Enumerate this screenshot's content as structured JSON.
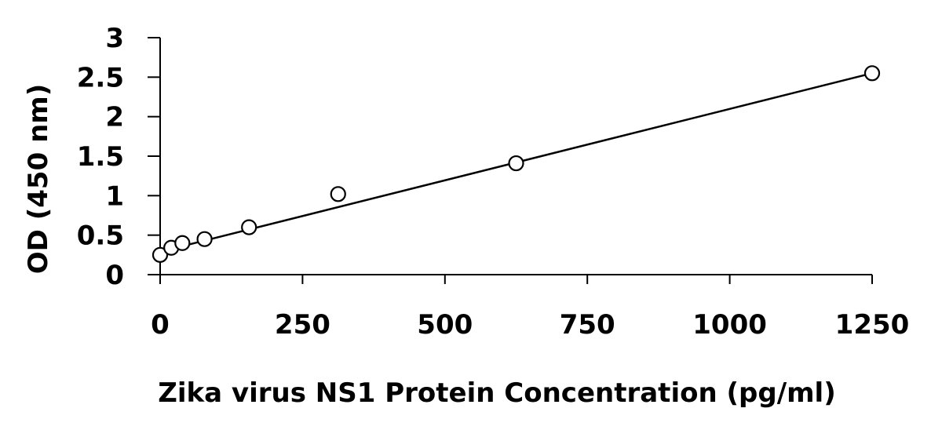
{
  "chart_data": {
    "type": "scatter",
    "title": "",
    "xlabel": "Zika virus NS1 Protein Concentration (pg/ml)",
    "ylabel": "OD (450 nm)",
    "xlim": [
      0,
      1250
    ],
    "ylim": [
      0,
      3
    ],
    "xticks": [
      0,
      250,
      500,
      750,
      1000,
      1250
    ],
    "yticks": [
      0,
      0.5,
      1,
      1.5,
      2,
      2.5,
      3
    ],
    "xtick_labels": [
      "0",
      "250",
      "500",
      "750",
      "1000",
      "1250"
    ],
    "ytick_labels": [
      "0",
      "0.5",
      "1",
      "1.5",
      "2",
      "2.5",
      "3"
    ],
    "grid": false,
    "legend": "none",
    "marker": "open-circle",
    "colors": {
      "axis": "#000000",
      "marker": "#000000",
      "trendline": "#000000",
      "background": "#ffffff"
    },
    "series": [
      {
        "x": [
          0,
          19.5,
          39,
          78,
          156,
          312.5,
          625,
          1250
        ],
        "y": [
          0.25,
          0.34,
          0.4,
          0.45,
          0.6,
          1.02,
          1.41,
          2.55
        ]
      }
    ],
    "trendline": {
      "type": "linear",
      "x": [
        0,
        1250
      ],
      "y": [
        0.29,
        2.55
      ]
    }
  }
}
